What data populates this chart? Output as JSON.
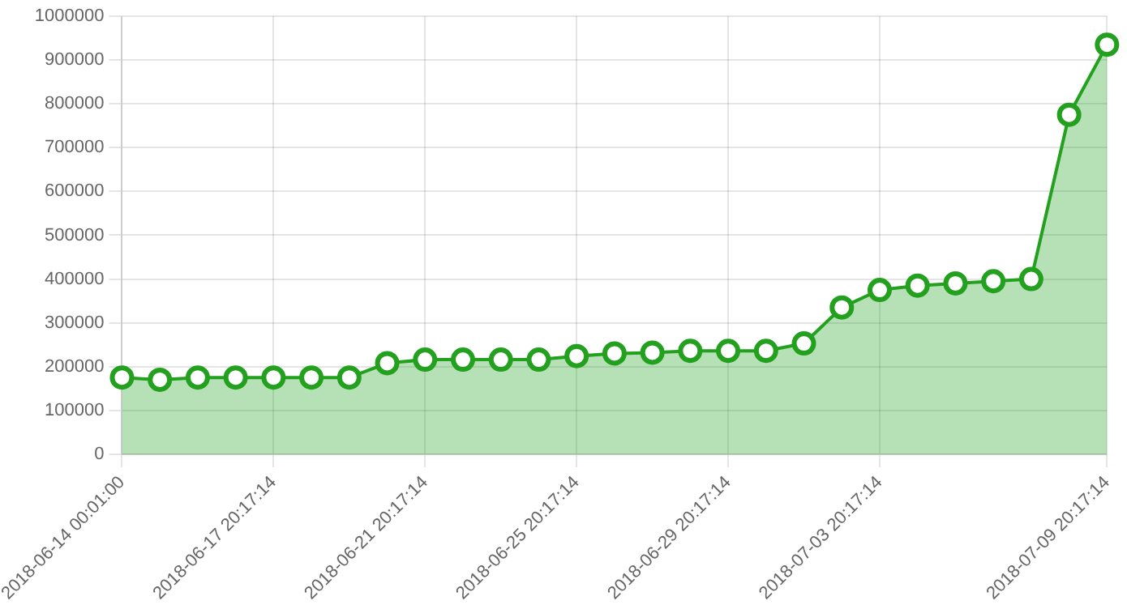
{
  "chart_data": {
    "type": "area",
    "categories": [
      "2018-06-14 00:01:00",
      null,
      null,
      null,
      "2018-06-17 20:17:14",
      null,
      null,
      null,
      "2018-06-21 20:17:14",
      null,
      null,
      null,
      "2018-06-25 20:17:14",
      null,
      null,
      null,
      "2018-06-29 20:17:14",
      null,
      null,
      null,
      "2018-07-03 20:17:14",
      null,
      null,
      null,
      null,
      null,
      "2018-07-09 20:17:14"
    ],
    "series": [
      {
        "color": "#22a01e",
        "values": [
          175000,
          170000,
          175000,
          175000,
          175000,
          175000,
          175000,
          208000,
          216000,
          216000,
          216000,
          216000,
          224000,
          230000,
          232000,
          236000,
          236000,
          236000,
          253000,
          335000,
          375000,
          385000,
          390000,
          395000,
          400000,
          775000,
          935000
        ]
      }
    ],
    "ylim": [
      0,
      1000000
    ],
    "yticks": [
      0,
      100000,
      200000,
      300000,
      400000,
      500000,
      600000,
      700000,
      800000,
      900000,
      1000000
    ],
    "grid": true,
    "legend": false,
    "marker": "circle",
    "line_style": "solid"
  }
}
